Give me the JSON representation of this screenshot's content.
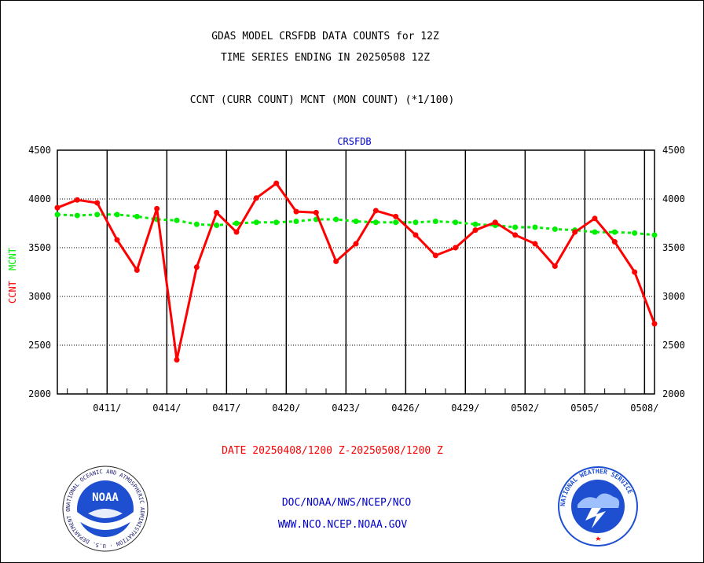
{
  "header": {
    "line1": "GDAS MODEL CRSFDB DATA COUNTS for 12Z",
    "line2": "TIME SERIES ENDING IN 20250508 12Z",
    "line3": "CCNT (CURR COUNT) MCNT (MON COUNT) (*1/100)"
  },
  "footer": {
    "date_range": "DATE 20250408/1200 Z-20250508/1200 Z",
    "link1": "DOC/NOAA/NWS/NCEP/NCO",
    "link2": "WWW.NCO.NCEP.NOAA.GOV"
  },
  "logos": {
    "noaa_text": "NOAA",
    "noaa_ring": "NATIONAL OCEANIC AND ATMOSPHERIC ADMINISTRATION · U.S. DEPARTMENT OF COMMERCE ·",
    "nws_ring": "NATIONAL WEATHER SERVICE"
  },
  "colors": {
    "ccnt": "#ff0000",
    "mcnt": "#00ee00",
    "title_blue": "#0000cc",
    "footer_red": "#ff0000",
    "footer_blue": "#0000cc"
  },
  "chart_data": {
    "type": "line",
    "title": "CRSFDB",
    "ylabel_parts": [
      {
        "text": "CCNT",
        "color": "#ff0000"
      },
      {
        "text": "MCNT",
        "color": "#00ee00"
      }
    ],
    "ylim": [
      2000,
      4500
    ],
    "yticks": [
      2000,
      2500,
      3000,
      3500,
      4000,
      4500
    ],
    "xlim": [
      "2025-04-08",
      "2025-05-08"
    ],
    "x_tick_dates": [
      "2025-04-11",
      "2025-04-14",
      "2025-04-17",
      "2025-04-20",
      "2025-04-23",
      "2025-04-26",
      "2025-04-29",
      "2025-05-02",
      "2025-05-05",
      "2025-05-08"
    ],
    "x_tick_labels": [
      "0411/",
      "0414/",
      "0417/",
      "0420/",
      "0423/",
      "0426/",
      "0429/",
      "0502/",
      "0505/",
      "0508/"
    ],
    "grid": true,
    "series": [
      {
        "name": "CCNT",
        "color": "#ff0000",
        "x": [
          "2025-04-08",
          "2025-04-09",
          "2025-04-10",
          "2025-04-11",
          "2025-04-12",
          "2025-04-13",
          "2025-04-14",
          "2025-04-15",
          "2025-04-16",
          "2025-04-17",
          "2025-04-18",
          "2025-04-19",
          "2025-04-20",
          "2025-04-21",
          "2025-04-22",
          "2025-04-23",
          "2025-04-24",
          "2025-04-25",
          "2025-04-26",
          "2025-04-27",
          "2025-04-28",
          "2025-04-29",
          "2025-04-30",
          "2025-05-01",
          "2025-05-02",
          "2025-05-03",
          "2025-05-04",
          "2025-05-05",
          "2025-05-06",
          "2025-05-07",
          "2025-05-08"
        ],
        "values": [
          3910,
          3990,
          3960,
          3580,
          3270,
          3900,
          2350,
          3300,
          3860,
          3660,
          4010,
          4160,
          3870,
          3860,
          3360,
          3540,
          3880,
          3820,
          3630,
          3420,
          3500,
          3680,
          3760,
          3630,
          3540,
          3310,
          3660,
          3800,
          3560,
          3250,
          2720
        ]
      },
      {
        "name": "MCNT",
        "color": "#00ee00",
        "x": [
          "2025-04-08",
          "2025-04-09",
          "2025-04-10",
          "2025-04-11",
          "2025-04-12",
          "2025-04-13",
          "2025-04-14",
          "2025-04-15",
          "2025-04-16",
          "2025-04-17",
          "2025-04-18",
          "2025-04-19",
          "2025-04-20",
          "2025-04-21",
          "2025-04-22",
          "2025-04-23",
          "2025-04-24",
          "2025-04-25",
          "2025-04-26",
          "2025-04-27",
          "2025-04-28",
          "2025-04-29",
          "2025-04-30",
          "2025-05-01",
          "2025-05-02",
          "2025-05-03",
          "2025-05-04",
          "2025-05-05",
          "2025-05-06",
          "2025-05-07",
          "2025-05-08"
        ],
        "values": [
          3840,
          3830,
          3840,
          3840,
          3820,
          3790,
          3780,
          3740,
          3730,
          3750,
          3760,
          3760,
          3770,
          3790,
          3790,
          3770,
          3760,
          3760,
          3760,
          3770,
          3760,
          3740,
          3730,
          3710,
          3710,
          3690,
          3680,
          3660,
          3660,
          3650,
          3630
        ]
      }
    ]
  }
}
